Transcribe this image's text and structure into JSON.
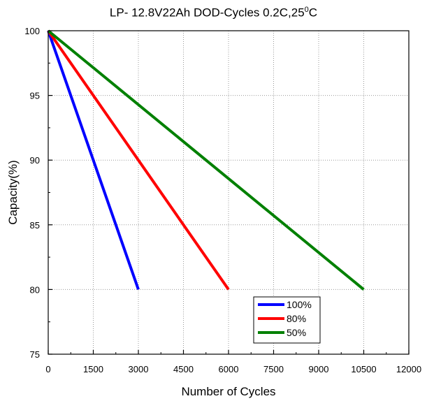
{
  "chart_data": {
    "type": "line",
    "title": {
      "main": "LP- 12.8V22Ah DOD-Cycles  0.2C,25",
      "superscript": "0",
      "suffix": "C"
    },
    "xlabel": "Number of Cycles",
    "ylabel": "Capacity(%)",
    "xlim": [
      0,
      12000
    ],
    "ylim": [
      75,
      100
    ],
    "xticks": [
      "0",
      "1500",
      "3000",
      "4500",
      "6000",
      "7500",
      "9000",
      "10500",
      "12000"
    ],
    "yticks": [
      "75",
      "80",
      "85",
      "90",
      "95",
      "100"
    ],
    "grid": true,
    "legend_position": "lower-center-right",
    "series": [
      {
        "name": "100%",
        "color": "#0000ff",
        "x": [
          0,
          3000
        ],
        "y": [
          100,
          80
        ]
      },
      {
        "name": "80%",
        "color": "#ff0000",
        "x": [
          0,
          6000
        ],
        "y": [
          100,
          80
        ]
      },
      {
        "name": "50%",
        "color": "#008000",
        "x": [
          0,
          10500
        ],
        "y": [
          100,
          80
        ]
      }
    ]
  }
}
